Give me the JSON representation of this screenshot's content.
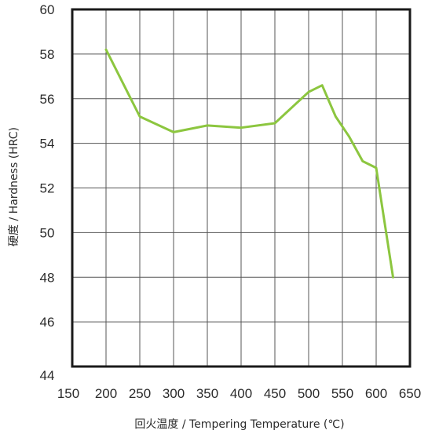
{
  "chart_data": {
    "type": "line",
    "xlabel": "回火温度 / Tempering Temperature (℃)",
    "ylabel": "硬度 / Hardness (HRC)",
    "xlim": [
      150,
      650
    ],
    "ylim": [
      44,
      60
    ],
    "x_ticks": [
      "150",
      "200",
      "250",
      "300",
      "350",
      "400",
      "450",
      "500",
      "550",
      "600",
      "650"
    ],
    "y_ticks": [
      "44",
      "46",
      "48",
      "50",
      "52",
      "54",
      "56",
      "58",
      "60"
    ],
    "grid": true,
    "colors": {
      "line": "#8cc63f",
      "grid": "#555555",
      "frame": "#1a1a1a"
    },
    "series": [
      {
        "x": [
          200,
          250,
          300,
          350,
          400,
          450,
          500,
          520,
          540,
          560,
          580,
          600,
          625
        ],
        "values": [
          58.2,
          55.2,
          54.5,
          54.8,
          54.7,
          54.9,
          56.3,
          56.6,
          55.2,
          54.3,
          53.2,
          52.9,
          48.0
        ]
      }
    ]
  }
}
